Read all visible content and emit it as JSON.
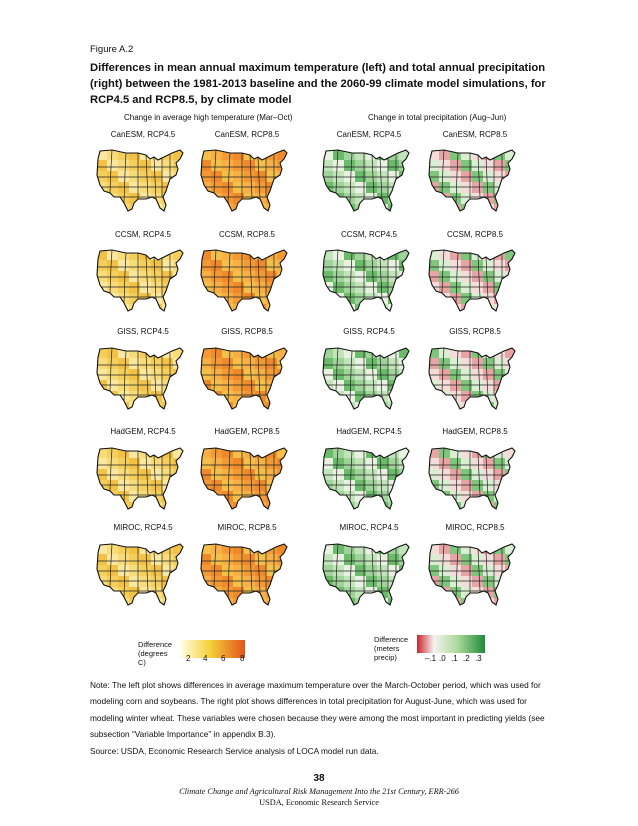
{
  "figure": {
    "label": "Figure A.2",
    "title": "Differences in mean annual maximum temperature (left) and total annual precipitation (right) between the 1981-2013 baseline and the 2060-99 climate model simulations, for RCP4.5 and RCP8.5, by climate model"
  },
  "panels": {
    "temperature": {
      "heading": "Change in average high temperature (Mar–Oct)",
      "legend_title": "Difference\n(degrees\nC)",
      "legend_ticks": [
        "2",
        "4",
        "6",
        "8"
      ],
      "colors": {
        "low": "#fffde0",
        "mid": "#f4d23a",
        "high": "#e2541b"
      }
    },
    "precipitation": {
      "heading": "Change in total precipitation (Aug–Jun)",
      "legend_title": "Difference\n(meters\nprecip)",
      "legend_ticks": [
        "–.1",
        ".0",
        ".1",
        ".2",
        ".3"
      ],
      "colors": {
        "dry": "#c8262c",
        "neutral": "#f6f2ee",
        "wet": "#1f8a3a"
      }
    }
  },
  "maps": [
    {
      "model": "CanESM",
      "labels": [
        "CanESM, RCP4.5",
        "CanESM, RCP8.5",
        "CanESM, RCP4.5",
        "CanESM, RCP8.5"
      ]
    },
    {
      "model": "CCSM",
      "labels": [
        "CCSM, RCP4.5",
        "CCSM, RCP8.5",
        "CCSM, RCP4.5",
        "CCSM, RCP8.5"
      ]
    },
    {
      "model": "GISS",
      "labels": [
        "GISS, RCP4.5",
        "GISS, RCP8.5",
        "GISS, RCP4.5",
        "GISS, RCP8.5"
      ]
    },
    {
      "model": "HadGEM",
      "labels": [
        "HadGEM, RCP4.5",
        "HadGEM, RCP8.5",
        "HadGEM, RCP4.5",
        "HadGEM, RCP8.5"
      ]
    },
    {
      "model": "MIROC",
      "labels": [
        "MIROC, RCP4.5",
        "MIROC, RCP8.5",
        "MIROC, RCP4.5",
        "MIROC, RCP8.5"
      ]
    }
  ],
  "notes": {
    "note": "Note: The left plot shows differences in average maximum temperature over the March-October period, which was used for modeling corn and soybeans. The right plot shows differences in total precipitation for August-June, which was used for modeling winter wheat. These variables were chosen because they were among the most important in predicting yields (see subsection “Variable Importance” in appendix B.3).",
    "source": "Source: USDA, Economic Research Service analysis of LOCA model run data."
  },
  "footer": {
    "page_number": "38",
    "report_title": "Climate Change and Agricultural Risk Management Into the 21st Century, ERR-266",
    "agency": "USDA, Economic Research Service"
  }
}
